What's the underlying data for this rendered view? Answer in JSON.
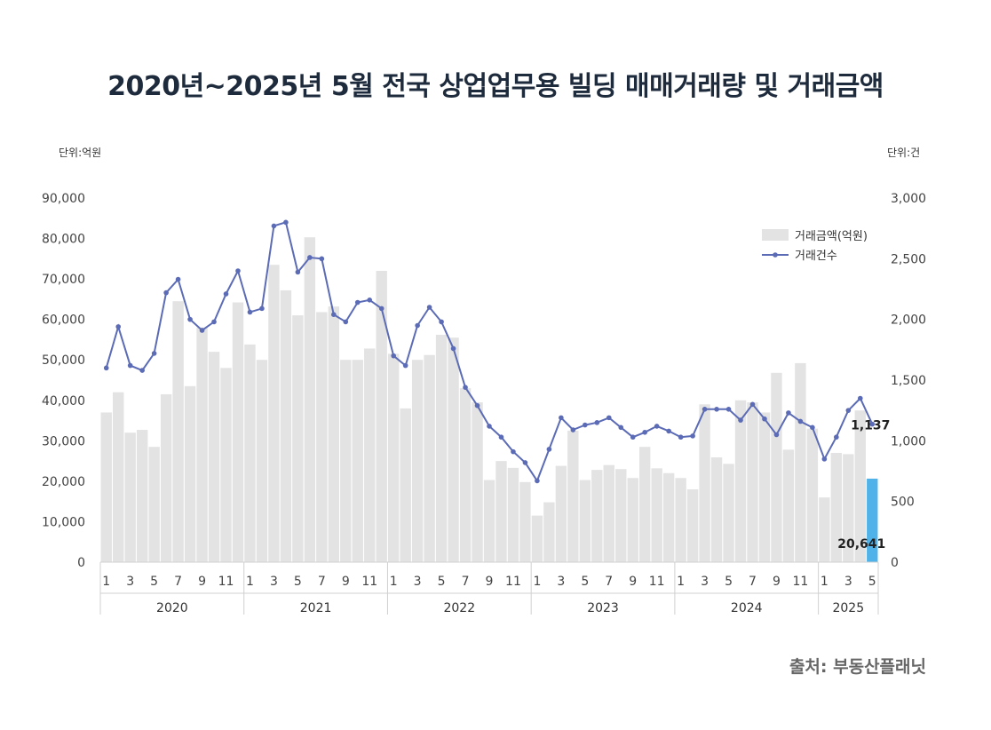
{
  "title": "2020년~2025년  5월 전국 상업업무용 빌딩 매매거래량 및 거래금액",
  "unit_left": "단위:억원",
  "unit_right": "단위:건",
  "source": "출처: 부동산플래닛",
  "colors": {
    "bar": "#e3e3e3",
    "bar_highlight": "#4fb3ea",
    "line": "#5b6bb5",
    "axis": "#d0d0d0",
    "title": "#1e2b3c"
  },
  "chart_data": {
    "type": "bar+line",
    "title": "2020년~2025년  5월 전국 상업업무용 빌딩 매매거래량 및 거래금액",
    "legend": {
      "position": "top-right",
      "entries": [
        "거래금액(억원)",
        "거래건수"
      ]
    },
    "y_left": {
      "label": "단위:억원",
      "range": [
        0,
        90000
      ],
      "ticks": [
        "0",
        "10,000",
        "20,000",
        "30,000",
        "40,000",
        "50,000",
        "60,000",
        "70,000",
        "80,000",
        "90,000"
      ]
    },
    "y_right": {
      "label": "단위:건",
      "range": [
        0,
        3000
      ],
      "ticks": [
        "0",
        "500",
        "1,000",
        "1,500",
        "2,000",
        "2,500",
        "3,000"
      ]
    },
    "x_tick_labels": [
      "1",
      "3",
      "5",
      "7",
      "9",
      "11",
      "1",
      "3",
      "5",
      "7",
      "9",
      "11",
      "1",
      "3",
      "5",
      "7",
      "9",
      "11",
      "1",
      "3",
      "5",
      "7",
      "9",
      "11",
      "1",
      "3",
      "5",
      "7",
      "9",
      "11",
      "1",
      "3",
      "5"
    ],
    "years": [
      {
        "label": "2020",
        "months": 12
      },
      {
        "label": "2021",
        "months": 12
      },
      {
        "label": "2022",
        "months": 12
      },
      {
        "label": "2023",
        "months": 12
      },
      {
        "label": "2024",
        "months": 12
      },
      {
        "label": "2025",
        "months": 5
      }
    ],
    "series": [
      {
        "name": "거래금액(억원)",
        "type": "bar",
        "axis": "left",
        "values": [
          37000,
          42000,
          32000,
          32700,
          28500,
          41500,
          64500,
          43500,
          58000,
          52000,
          48000,
          64200,
          53800,
          50000,
          73500,
          67200,
          61000,
          80300,
          61800,
          63200,
          50000,
          50000,
          52800,
          72000,
          51500,
          38000,
          50000,
          51200,
          56200,
          55500,
          43000,
          39500,
          20300,
          25000,
          23300,
          19800,
          11500,
          14800,
          23800,
          32500,
          20300,
          22800,
          24000,
          23000,
          20800,
          28500,
          23200,
          22000,
          20800,
          18000,
          39000,
          25900,
          24300,
          40000,
          39500,
          37000,
          46800,
          27800,
          49200,
          33000,
          16000,
          27000,
          26700,
          37500,
          20641
        ]
      },
      {
        "name": "거래건수",
        "type": "line",
        "axis": "right",
        "values": [
          1600,
          1940,
          1620,
          1580,
          1720,
          2220,
          2330,
          2000,
          1910,
          1980,
          2210,
          2400,
          2060,
          2090,
          2770,
          2800,
          2390,
          2510,
          2500,
          2040,
          1980,
          2140,
          2160,
          2090,
          1700,
          1620,
          1950,
          2100,
          1980,
          1760,
          1440,
          1290,
          1120,
          1030,
          910,
          820,
          670,
          930,
          1190,
          1090,
          1130,
          1150,
          1190,
          1110,
          1030,
          1070,
          1120,
          1080,
          1030,
          1040,
          1260,
          1260,
          1260,
          1170,
          1300,
          1180,
          1050,
          1230,
          1160,
          1110,
          850,
          1030,
          1250,
          1350,
          1137
        ]
      }
    ],
    "annotations": {
      "last_bar_label": "20,641",
      "last_point_label": "1,137"
    }
  }
}
